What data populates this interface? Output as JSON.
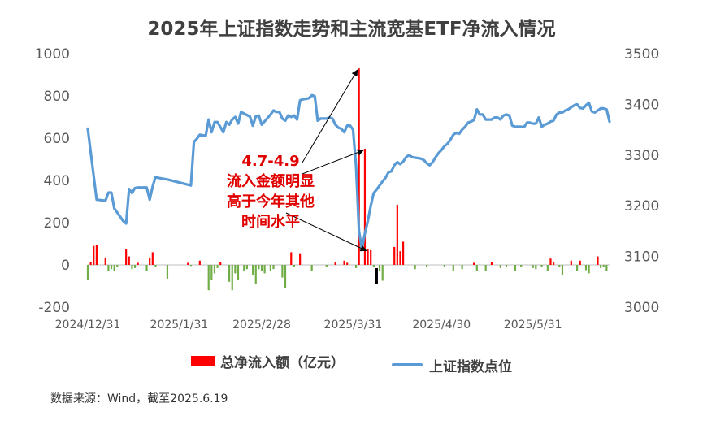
{
  "chart_data": {
    "type": "bar+line",
    "title": "2025年上证指数走势和主流宽基ETF净流入情况",
    "y_left": {
      "min": -200,
      "max": 1000,
      "ticks": [
        -200,
        0,
        200,
        400,
        600,
        800,
        1000
      ]
    },
    "y_right": {
      "min": 3000,
      "max": 3500,
      "ticks": [
        3000,
        3100,
        3200,
        3300,
        3400,
        3500
      ]
    },
    "x_ticks": [
      "2024/12/31",
      "2025/1/31",
      "2025/2/28",
      "2025/3/31",
      "2025/4/30",
      "2025/5/31"
    ],
    "x_tick_days": [
      0,
      31,
      59,
      90,
      120,
      151
    ],
    "x_range_days": [
      0,
      170
    ],
    "series": [
      {
        "name": "总净流入额（亿元）",
        "type": "bar",
        "color": "#ff0000",
        "negative_color": "#70ad47",
        "points": [
          [
            0,
            -70
          ],
          [
            1,
            15
          ],
          [
            2,
            90
          ],
          [
            3,
            95
          ],
          [
            6,
            35
          ],
          [
            7,
            -30
          ],
          [
            8,
            -20
          ],
          [
            9,
            -30
          ],
          [
            10,
            -10
          ],
          [
            13,
            75
          ],
          [
            14,
            40
          ],
          [
            15,
            -20
          ],
          [
            16,
            -15
          ],
          [
            17,
            10
          ],
          [
            20,
            -30
          ],
          [
            21,
            35
          ],
          [
            22,
            60
          ],
          [
            23,
            -10
          ],
          [
            27,
            -65
          ],
          [
            34,
            10
          ],
          [
            35,
            -5
          ],
          [
            38,
            20
          ],
          [
            41,
            -120
          ],
          [
            42,
            -70
          ],
          [
            43,
            -40
          ],
          [
            44,
            -15
          ],
          [
            45,
            15
          ],
          [
            48,
            -80
          ],
          [
            49,
            -120
          ],
          [
            50,
            -40
          ],
          [
            51,
            -70
          ],
          [
            53,
            -30
          ],
          [
            54,
            -20
          ],
          [
            56,
            -50
          ],
          [
            57,
            -90
          ],
          [
            58,
            -20
          ],
          [
            59,
            -30
          ],
          [
            60,
            -40
          ],
          [
            62,
            -30
          ],
          [
            63,
            -20
          ],
          [
            66,
            -60
          ],
          [
            67,
            -110
          ],
          [
            69,
            60
          ],
          [
            70,
            -10
          ],
          [
            72,
            55
          ],
          [
            76,
            -30
          ],
          [
            81,
            -10
          ],
          [
            84,
            15
          ],
          [
            87,
            20
          ],
          [
            88,
            10
          ],
          [
            91,
            -15
          ],
          [
            92,
            930
          ],
          [
            94,
            550
          ],
          [
            95,
            75
          ],
          [
            96,
            70
          ],
          [
            97,
            -10
          ],
          [
            99,
            -30
          ],
          [
            100,
            -75
          ],
          [
            104,
            85
          ],
          [
            105,
            285
          ],
          [
            106,
            65
          ],
          [
            107,
            110
          ],
          [
            111,
            -20
          ],
          [
            115,
            -10
          ],
          [
            121,
            -10
          ],
          [
            124,
            -30
          ],
          [
            127,
            -20
          ],
          [
            131,
            10
          ],
          [
            132,
            -30
          ],
          [
            135,
            -30
          ],
          [
            137,
            15
          ],
          [
            140,
            -15
          ],
          [
            142,
            -10
          ],
          [
            145,
            -30
          ],
          [
            147,
            -10
          ],
          [
            151,
            -15
          ],
          [
            152,
            -20
          ],
          [
            154,
            -10
          ],
          [
            156,
            -30
          ],
          [
            157,
            30
          ],
          [
            158,
            15
          ],
          [
            160,
            -10
          ],
          [
            161,
            -50
          ],
          [
            164,
            20
          ],
          [
            166,
            -30
          ],
          [
            167,
            20
          ],
          [
            169,
            -25
          ],
          [
            170,
            -40
          ],
          [
            173,
            40
          ],
          [
            174,
            -15
          ],
          [
            175,
            -10
          ],
          [
            176,
            -30
          ]
        ],
        "highlight": {
          "day": 98,
          "value": -75,
          "color": "#000000"
        }
      },
      {
        "name": "上证指数点位",
        "type": "line",
        "axis": "right",
        "color": "#5b9bd5",
        "points": [
          [
            0,
            3352
          ],
          [
            3,
            3212
          ],
          [
            6,
            3210
          ],
          [
            7,
            3226
          ],
          [
            8,
            3226
          ],
          [
            9,
            3195
          ],
          [
            12,
            3170
          ],
          [
            13,
            3165
          ],
          [
            14,
            3233
          ],
          [
            15,
            3225
          ],
          [
            16,
            3235
          ],
          [
            17,
            3236
          ],
          [
            20,
            3236
          ],
          [
            21,
            3212
          ],
          [
            22,
            3238
          ],
          [
            23,
            3257
          ],
          [
            24,
            3255
          ],
          [
            27,
            3252
          ],
          [
            35,
            3240
          ],
          [
            36,
            3326
          ],
          [
            37,
            3332
          ],
          [
            38,
            3340
          ],
          [
            40,
            3338
          ],
          [
            41,
            3370
          ],
          [
            42,
            3345
          ],
          [
            43,
            3365
          ],
          [
            44,
            3365
          ],
          [
            46,
            3345
          ],
          [
            47,
            3365
          ],
          [
            48,
            3360
          ],
          [
            49,
            3370
          ],
          [
            50,
            3375
          ],
          [
            51,
            3362
          ],
          [
            52,
            3385
          ],
          [
            55,
            3376
          ],
          [
            56,
            3358
          ],
          [
            57,
            3376
          ],
          [
            58,
            3378
          ],
          [
            59,
            3360
          ],
          [
            62,
            3380
          ],
          [
            63,
            3388
          ],
          [
            64,
            3385
          ],
          [
            65,
            3385
          ],
          [
            66,
            3372
          ],
          [
            67,
            3368
          ],
          [
            68,
            3378
          ],
          [
            69,
            3375
          ],
          [
            70,
            3378
          ],
          [
            71,
            3370
          ],
          [
            72,
            3408
          ],
          [
            73,
            3410
          ],
          [
            75,
            3412
          ],
          [
            76,
            3418
          ],
          [
            77,
            3416
          ],
          [
            78,
            3368
          ],
          [
            79,
            3372
          ],
          [
            80,
            3372
          ],
          [
            81,
            3372
          ],
          [
            82,
            3374
          ],
          [
            83,
            3372
          ],
          [
            84,
            3360
          ],
          [
            85,
            3354
          ],
          [
            86,
            3352
          ],
          [
            87,
            3345
          ],
          [
            88,
            3358
          ],
          [
            89,
            3358
          ],
          [
            90,
            3350
          ],
          [
            91,
            3278
          ],
          [
            92,
            3150
          ],
          [
            93,
            3115
          ],
          [
            94,
            3145
          ],
          [
            95,
            3170
          ],
          [
            96,
            3200
          ],
          [
            97,
            3225
          ],
          [
            98,
            3232
          ],
          [
            100,
            3248
          ],
          [
            101,
            3255
          ],
          [
            102,
            3266
          ],
          [
            103,
            3268
          ],
          [
            104,
            3280
          ],
          [
            105,
            3286
          ],
          [
            106,
            3282
          ],
          [
            107,
            3287
          ],
          [
            108,
            3296
          ],
          [
            109,
            3300
          ],
          [
            110,
            3296
          ],
          [
            111,
            3295
          ],
          [
            112,
            3294
          ],
          [
            113,
            3293
          ],
          [
            114,
            3290
          ],
          [
            115,
            3284
          ],
          [
            116,
            3280
          ],
          [
            117,
            3286
          ],
          [
            118,
            3296
          ],
          [
            119,
            3304
          ],
          [
            120,
            3310
          ],
          [
            121,
            3318
          ],
          [
            122,
            3322
          ],
          [
            123,
            3330
          ],
          [
            124,
            3340
          ],
          [
            125,
            3344
          ],
          [
            126,
            3342
          ],
          [
            127,
            3350
          ],
          [
            128,
            3356
          ],
          [
            129,
            3364
          ],
          [
            130,
            3366
          ],
          [
            131,
            3369
          ],
          [
            132,
            3390
          ],
          [
            133,
            3380
          ],
          [
            134,
            3380
          ],
          [
            135,
            3370
          ],
          [
            136,
            3370
          ],
          [
            137,
            3370
          ],
          [
            138,
            3374
          ],
          [
            139,
            3374
          ],
          [
            140,
            3370
          ],
          [
            141,
            3378
          ],
          [
            142,
            3380
          ],
          [
            143,
            3378
          ],
          [
            144,
            3358
          ],
          [
            145,
            3356
          ],
          [
            147,
            3356
          ],
          [
            148,
            3355
          ],
          [
            149,
            3364
          ],
          [
            150,
            3364
          ],
          [
            151,
            3362
          ],
          [
            152,
            3362
          ],
          [
            153,
            3374
          ],
          [
            154,
            3356
          ],
          [
            155,
            3360
          ],
          [
            156,
            3362
          ],
          [
            157,
            3366
          ],
          [
            158,
            3368
          ],
          [
            159,
            3380
          ],
          [
            160,
            3384
          ],
          [
            161,
            3384
          ],
          [
            162,
            3388
          ],
          [
            163,
            3390
          ],
          [
            164,
            3394
          ],
          [
            165,
            3398
          ],
          [
            166,
            3400
          ],
          [
            167,
            3393
          ],
          [
            168,
            3392
          ],
          [
            169,
            3398
          ],
          [
            170,
            3403
          ],
          [
            171,
            3386
          ],
          [
            172,
            3384
          ],
          [
            173,
            3388
          ],
          [
            174,
            3392
          ],
          [
            175,
            3392
          ],
          [
            176,
            3390
          ],
          [
            177,
            3366
          ]
        ]
      }
    ],
    "annotation": {
      "lines": [
        "4.7-4.9",
        "流入金额明显",
        "高于今年其他",
        "时间水平"
      ],
      "color": "#e00000",
      "targets": [
        {
          "day": 92,
          "value": 930,
          "axis": "left"
        },
        {
          "day": 94,
          "value": 550,
          "axis": "left"
        },
        {
          "day": 95,
          "value": 75,
          "axis": "left"
        }
      ]
    },
    "legend_position": "bottom",
    "grid": true
  },
  "legend": {
    "bar_label": "总净流入额（亿元）",
    "line_label": "上证指数点位"
  },
  "source": "数据来源：Wind，截至2025.6.19"
}
